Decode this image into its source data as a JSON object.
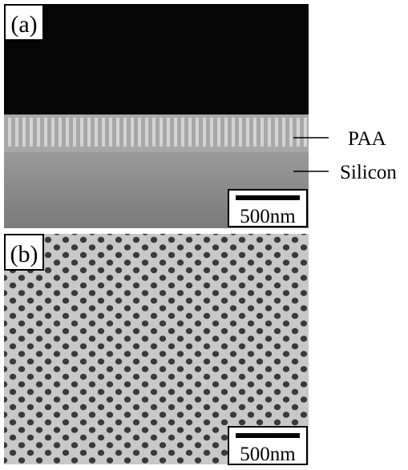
{
  "panels": [
    {
      "label": "(a)",
      "scale_bar": "500nm"
    },
    {
      "label": "(b)",
      "scale_bar": "500nm"
    }
  ],
  "annotations": {
    "layer_top": "PAA",
    "layer_bottom": "Silicon"
  }
}
